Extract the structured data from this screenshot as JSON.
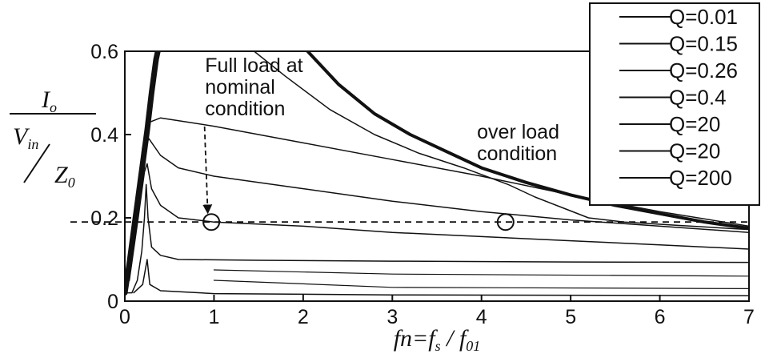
{
  "chart_data": {
    "type": "line",
    "xlabel": {
      "pre": "fn=f",
      "s1": "s",
      "mid": " / f",
      "s2": "01"
    },
    "ylabel": {
      "num_main": "I",
      "num_sub": "o",
      "den_main": "V",
      "den_sub": "in",
      "z_main": "Z",
      "z_sub": "0"
    },
    "xlim": [
      0,
      7
    ],
    "ylim": [
      0,
      0.6
    ],
    "xticks": [
      0,
      1,
      2,
      3,
      4,
      5,
      6,
      7
    ],
    "yticks": [
      0,
      0.2,
      0.4,
      0.6
    ],
    "x_tick_labels": [
      "0",
      "1",
      "2",
      "3",
      "4",
      "5",
      "6",
      "7"
    ],
    "y_tick_labels": [
      "0",
      "0.2",
      "0.4",
      "0.6"
    ],
    "grid": false,
    "legend": {
      "position": "top-right",
      "entries": [
        "Q=0.01",
        "Q=0.15",
        "Q=0.26",
        "Q=0.4",
        "Q=20",
        "Q=20",
        "Q=200"
      ]
    },
    "reference_line": {
      "y": 0.19,
      "style": "dashed"
    },
    "markers": [
      {
        "x": 0.97,
        "y": 0.19,
        "shape": "circle"
      },
      {
        "x": 4.27,
        "y": 0.19,
        "shape": "circle"
      }
    ],
    "annotations": [
      {
        "lines": [
          "Full load at",
          "nominal",
          "condition"
        ],
        "x": 0.9,
        "y": 0.55,
        "arrow_to": {
          "x": 0.93,
          "y": 0.205
        }
      },
      {
        "lines": [
          "over load",
          "condition"
        ],
        "x": 3.95,
        "y": 0.39
      }
    ],
    "series": [
      {
        "label": "Q=0.01",
        "width": 7,
        "points": [
          [
            0,
            0.02
          ],
          [
            0.05,
            0.09
          ],
          [
            0.1,
            0.17
          ],
          [
            0.15,
            0.25
          ],
          [
            0.2,
            0.33
          ],
          [
            0.25,
            0.41
          ],
          [
            0.3,
            0.5
          ],
          [
            0.35,
            0.58
          ],
          [
            0.37,
            0.6
          ]
        ]
      },
      {
        "label": "Q=0.15",
        "width": 4,
        "points": [
          [
            2.05,
            0.6
          ],
          [
            2.4,
            0.52
          ],
          [
            2.8,
            0.45
          ],
          [
            3.2,
            0.4
          ],
          [
            3.6,
            0.36
          ],
          [
            4.0,
            0.32
          ],
          [
            4.5,
            0.285
          ],
          [
            5.0,
            0.255
          ],
          [
            5.5,
            0.23
          ],
          [
            6.0,
            0.21
          ],
          [
            6.5,
            0.19
          ],
          [
            7.0,
            0.175
          ]
        ]
      },
      {
        "label": "Q=0.26",
        "width": 1.5,
        "points": [
          [
            1.45,
            0.6
          ],
          [
            1.8,
            0.54
          ],
          [
            2.3,
            0.46
          ],
          [
            2.8,
            0.4
          ],
          [
            3.3,
            0.355
          ],
          [
            3.8,
            0.32
          ],
          [
            4.3,
            0.28
          ],
          [
            4.6,
            0.25
          ],
          [
            4.9,
            0.225
          ],
          [
            5.2,
            0.2
          ],
          [
            5.6,
            0.19
          ],
          [
            6.2,
            0.182
          ],
          [
            7.0,
            0.172
          ]
        ]
      },
      {
        "label": "Q=0.4",
        "width": 1.5,
        "points": [
          [
            0.04,
            0.05
          ],
          [
            0.12,
            0.22
          ],
          [
            0.2,
            0.37
          ],
          [
            0.28,
            0.43
          ],
          [
            0.4,
            0.44
          ],
          [
            1.0,
            0.42
          ],
          [
            2.0,
            0.38
          ],
          [
            3.0,
            0.34
          ],
          [
            4.0,
            0.3
          ],
          [
            5.0,
            0.255
          ],
          [
            6.0,
            0.215
          ],
          [
            7.0,
            0.18
          ]
        ]
      },
      {
        "label": "Q=20",
        "width": 1.5,
        "points": [
          [
            0.05,
            0.05
          ],
          [
            0.15,
            0.27
          ],
          [
            0.22,
            0.37
          ],
          [
            0.27,
            0.39
          ],
          [
            0.4,
            0.35
          ],
          [
            0.6,
            0.32
          ],
          [
            1.0,
            0.3
          ],
          [
            2.0,
            0.27
          ],
          [
            3.0,
            0.24
          ],
          [
            4.0,
            0.215
          ],
          [
            5.0,
            0.195
          ],
          [
            6.0,
            0.18
          ],
          [
            7.0,
            0.165
          ]
        ]
      },
      {
        "label": "Q=20",
        "width": 1.5,
        "points": [
          [
            0.05,
            0.05
          ],
          [
            0.15,
            0.2
          ],
          [
            0.22,
            0.31
          ],
          [
            0.25,
            0.33
          ],
          [
            0.3,
            0.27
          ],
          [
            0.4,
            0.23
          ],
          [
            0.6,
            0.2
          ],
          [
            1.0,
            0.19
          ],
          [
            2.0,
            0.18
          ],
          [
            3.0,
            0.165
          ],
          [
            4.0,
            0.155
          ],
          [
            5.0,
            0.145
          ],
          [
            6.0,
            0.135
          ],
          [
            7.0,
            0.125
          ]
        ]
      },
      {
        "label": "Q=200",
        "width": 1.5,
        "points": [
          [
            0.02,
            0.02
          ],
          [
            0.08,
            0.02
          ],
          [
            0.14,
            0.05
          ],
          [
            0.19,
            0.12
          ],
          [
            0.22,
            0.2
          ],
          [
            0.24,
            0.28
          ],
          [
            0.26,
            0.2
          ],
          [
            0.3,
            0.13
          ],
          [
            0.4,
            0.11
          ],
          [
            0.6,
            0.1
          ],
          [
            1.5,
            0.098
          ],
          [
            3.0,
            0.096
          ],
          [
            5.0,
            0.094
          ],
          [
            7.0,
            0.093
          ]
        ]
      },
      {
        "label": "",
        "width": 1.5,
        "points": [
          [
            0.1,
            0.02
          ],
          [
            0.2,
            0.04
          ],
          [
            0.25,
            0.1
          ],
          [
            0.28,
            0.04
          ],
          [
            0.4,
            0.025
          ],
          [
            1.0,
            0.018
          ],
          [
            3.0,
            0.015
          ],
          [
            7.0,
            0.013
          ]
        ]
      },
      {
        "label": "",
        "width": 1.2,
        "points": [
          [
            1.0,
            0.05
          ],
          [
            3.0,
            0.033
          ],
          [
            7.0,
            0.03
          ]
        ]
      },
      {
        "label": "",
        "width": 1.2,
        "points": [
          [
            1.0,
            0.075
          ],
          [
            3.0,
            0.065
          ],
          [
            7.0,
            0.06
          ]
        ]
      }
    ]
  }
}
